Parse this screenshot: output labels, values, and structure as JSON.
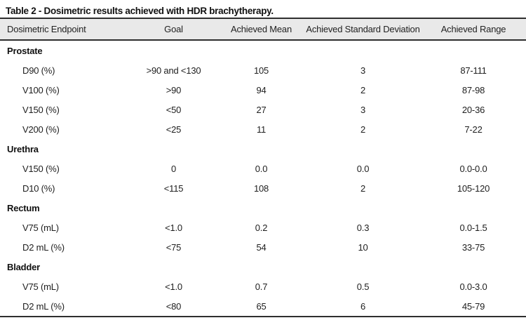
{
  "title": "Table 2 - Dosimetric results achieved with HDR brachytherapy.",
  "table": {
    "headers": {
      "endpoint": "Dosimetric Endpoint",
      "goal": "Goal",
      "mean": "Achieved Mean",
      "sd": "Achieved Standard Deviation",
      "range": "Achieved Range"
    },
    "rows": [
      {
        "type": "section",
        "label": "Prostate"
      },
      {
        "type": "data",
        "endpoint": "D90 (%)",
        "goal": ">90 and <130",
        "mean": "105",
        "sd": "3",
        "range": "87-111"
      },
      {
        "type": "data",
        "endpoint": "V100 (%)",
        "goal": ">90",
        "mean": "94",
        "sd": "2",
        "range": "87-98"
      },
      {
        "type": "data",
        "endpoint": "V150 (%)",
        "goal": "<50",
        "mean": "27",
        "sd": "3",
        "range": "20-36"
      },
      {
        "type": "data",
        "endpoint": "V200 (%)",
        "goal": "<25",
        "mean": "11",
        "sd": "2",
        "range": "7-22"
      },
      {
        "type": "section",
        "label": "Urethra"
      },
      {
        "type": "data",
        "endpoint": "V150 (%)",
        "goal": "0",
        "mean": "0.0",
        "sd": "0.0",
        "range": "0.0-0.0"
      },
      {
        "type": "data",
        "endpoint": "D10 (%)",
        "goal": "<115",
        "mean": "108",
        "sd": "2",
        "range": "105-120"
      },
      {
        "type": "section",
        "label": "Rectum"
      },
      {
        "type": "data",
        "endpoint": "V75 (mL)",
        "goal": "<1.0",
        "mean": "0.2",
        "sd": "0.3",
        "range": "0.0-1.5"
      },
      {
        "type": "data",
        "endpoint": "D2 mL (%)",
        "goal": "<75",
        "mean": "54",
        "sd": "10",
        "range": "33-75"
      },
      {
        "type": "section",
        "label": "Bladder"
      },
      {
        "type": "data",
        "endpoint": "V75 (mL)",
        "goal": "<1.0",
        "mean": "0.7",
        "sd": "0.5",
        "range": "0.0-3.0"
      },
      {
        "type": "data",
        "endpoint": "D2 mL (%)",
        "goal": "<80",
        "mean": "65",
        "sd": "6",
        "range": "45-79"
      }
    ]
  },
  "colors": {
    "header_background": "#e9e9e9",
    "rule_line": "#2e2e2e",
    "text": "#1e1e1e"
  }
}
